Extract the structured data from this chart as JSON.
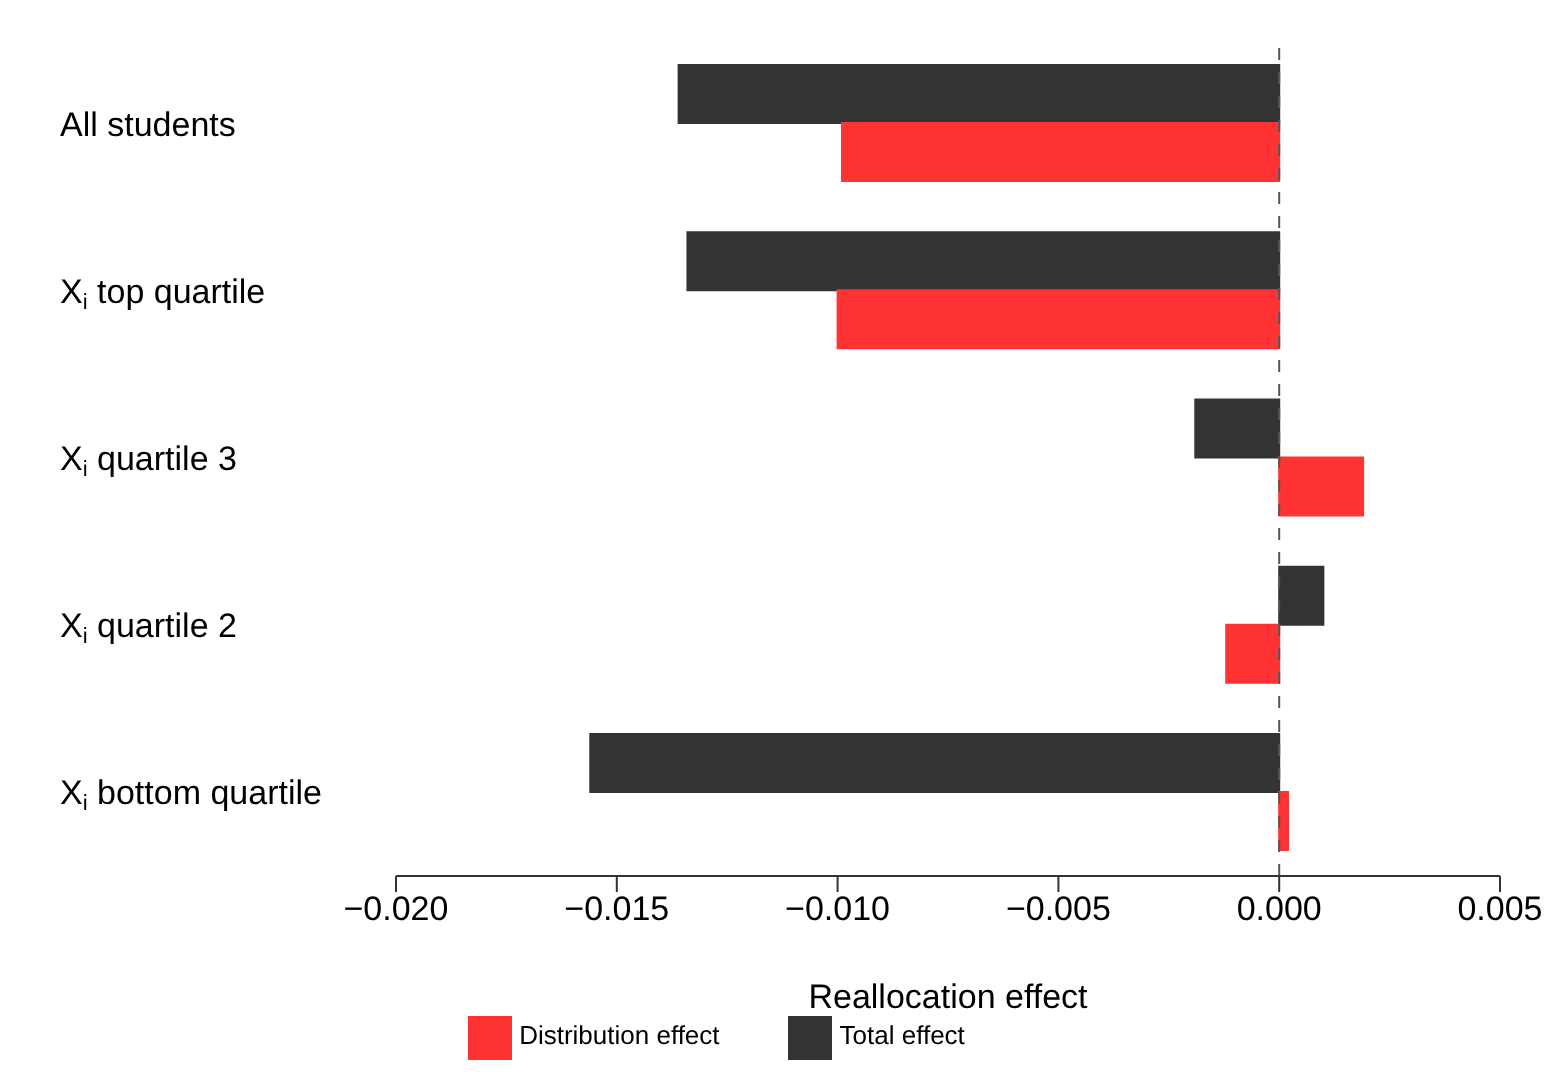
{
  "chart_data": {
    "type": "bar",
    "orientation": "horizontal",
    "xlabel": "Reallocation effect",
    "categories": [
      "All students",
      "X$_{i}$ top quartile",
      "X$_{i}$ quartile 3",
      "X$_{i}$ quartile 2",
      "X$_{i}$ bottom quartile"
    ],
    "series": [
      {
        "name": "Total effect",
        "color": "#333333",
        "values": [
          -0.0136,
          -0.0134,
          -0.0019,
          0.001,
          -0.0156
        ]
      },
      {
        "name": "Distribution effect",
        "color": "#ff3333",
        "values": [
          -0.0099,
          -0.01,
          0.0019,
          -0.0012,
          0.0002
        ]
      }
    ],
    "xlim": [
      -0.02,
      0.005
    ],
    "xticks": [
      {
        "value": -0.02,
        "label": "−0.020"
      },
      {
        "value": -0.015,
        "label": "−0.015"
      },
      {
        "value": -0.01,
        "label": "−0.010"
      },
      {
        "value": -0.005,
        "label": "−0.005"
      },
      {
        "value": 0,
        "label": "0.000"
      },
      {
        "value": 0.005,
        "label": "0.005"
      }
    ],
    "ref_lines": [
      {
        "axis": "x",
        "value": 0,
        "line_style": "dashed",
        "color": "#555555"
      }
    ],
    "grid": false,
    "legend": "bottom"
  }
}
